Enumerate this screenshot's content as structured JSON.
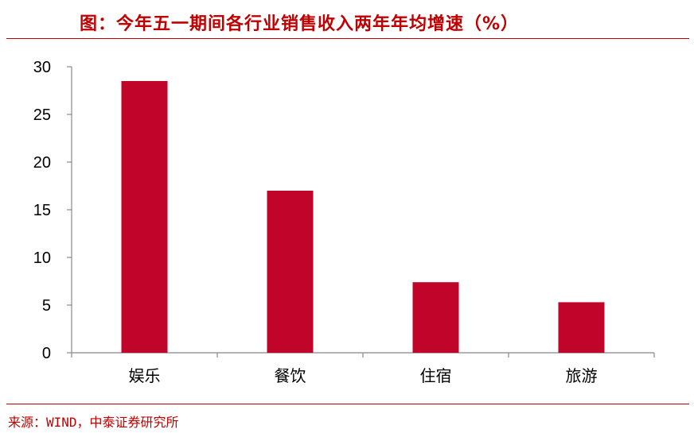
{
  "header": {
    "title": "图：今年五一期间各行业销售收入两年年均增速（%）"
  },
  "footer": {
    "source": "来源：WIND，中泰证券研究所"
  },
  "colors": {
    "accent": "#c00000",
    "bar": "#c0042a"
  },
  "chart_data": {
    "type": "bar",
    "title": "",
    "xlabel": "",
    "ylabel": "",
    "categories": [
      "娱乐",
      "餐饮",
      "住宿",
      "旅游"
    ],
    "values": [
      28.5,
      17.0,
      7.4,
      5.3
    ],
    "ylim": [
      0,
      30
    ],
    "yticks": [
      "0",
      "5",
      "10",
      "15",
      "20",
      "25",
      "30"
    ],
    "grid": false,
    "legend": "none"
  }
}
